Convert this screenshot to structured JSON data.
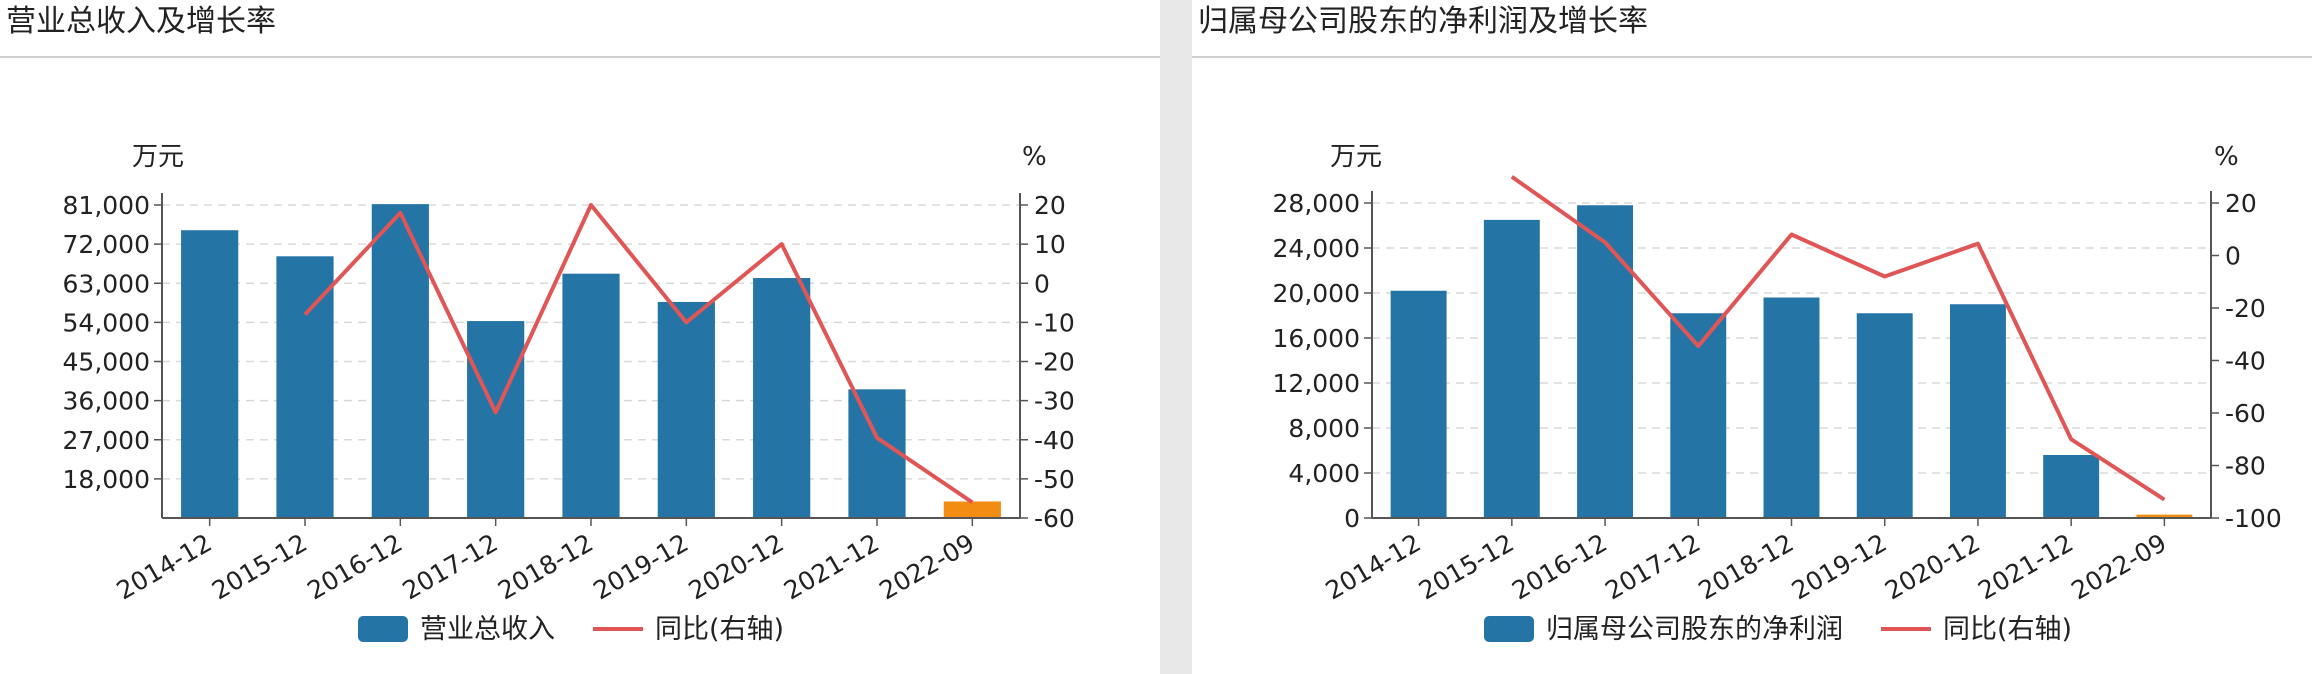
{
  "colors": {
    "bar": "#2574a6",
    "bar_highlight": "#f28c13",
    "line": "#e05656",
    "grid": "#d9d9d9",
    "axis": "#555555",
    "text": "#222222"
  },
  "charts": [
    {
      "title": "营业总收入及增长率",
      "left_unit": "万元",
      "right_unit": "%",
      "legend": [
        {
          "name": "营业总收入",
          "icon": "bar-swatch"
        },
        {
          "name": "同比(右轴)",
          "icon": "line-swatch"
        }
      ]
    },
    {
      "title": "归属母公司股东的净利润及增长率",
      "left_unit": "万元",
      "right_unit": "%",
      "legend": [
        {
          "name": "归属母公司股东的净利润",
          "icon": "bar-swatch"
        },
        {
          "name": "同比(右轴)",
          "icon": "line-swatch"
        }
      ]
    }
  ],
  "chart_data": [
    {
      "type": "bar",
      "title": "营业总收入及增长率",
      "categories": [
        "2014-12",
        "2015-12",
        "2016-12",
        "2017-12",
        "2018-12",
        "2019-12",
        "2020-12",
        "2021-12",
        "2022-09"
      ],
      "series": [
        {
          "name": "营业总收入",
          "type": "bar",
          "axis": "left",
          "values": [
            75200,
            69200,
            81200,
            54300,
            65200,
            58700,
            64200,
            38600,
            12800
          ],
          "highlight_last": true
        },
        {
          "name": "同比(右轴)",
          "type": "line",
          "axis": "right",
          "values": [
            null,
            -8,
            18,
            -33,
            20,
            -10,
            10,
            -39.5,
            -56
          ]
        }
      ],
      "left_axis": {
        "label": "万元",
        "ticks": [
          "18,000",
          "27,000",
          "36,000",
          "45,000",
          "54,000",
          "63,000",
          "72,000",
          "81,000"
        ],
        "tick_values": [
          18000,
          27000,
          36000,
          45000,
          54000,
          63000,
          72000,
          81000
        ],
        "range": [
          9000,
          81000
        ]
      },
      "right_axis": {
        "label": "%",
        "ticks": [
          "20",
          "10",
          "0",
          "-10",
          "-20",
          "-30",
          "-40",
          "-50",
          "-60"
        ],
        "tick_values": [
          20,
          10,
          0,
          -10,
          -20,
          -30,
          -40,
          -50,
          -60
        ],
        "range": [
          -60,
          20
        ]
      },
      "grid": true,
      "legend_position": "bottom"
    },
    {
      "type": "bar",
      "title": "归属母公司股东的净利润及增长率",
      "categories": [
        "2014-12",
        "2015-12",
        "2016-12",
        "2017-12",
        "2018-12",
        "2019-12",
        "2020-12",
        "2021-12",
        "2022-09"
      ],
      "series": [
        {
          "name": "归属母公司股东的净利润",
          "type": "bar",
          "axis": "left",
          "values": [
            20200,
            26500,
            27800,
            18200,
            19600,
            18200,
            19000,
            5600,
            300
          ],
          "highlight_last": true
        },
        {
          "name": "同比(右轴)",
          "type": "line",
          "axis": "right",
          "values": [
            null,
            30,
            5,
            -34.5,
            8,
            -8,
            4.5,
            -70,
            -93
          ]
        }
      ],
      "left_axis": {
        "label": "万元",
        "ticks": [
          "0",
          "4,000",
          "8,000",
          "12,000",
          "16,000",
          "20,000",
          "24,000",
          "28,000"
        ],
        "tick_values": [
          0,
          4000,
          8000,
          12000,
          16000,
          20000,
          24000,
          28000
        ],
        "range": [
          0,
          28000
        ]
      },
      "right_axis": {
        "label": "%",
        "ticks": [
          "20",
          "0",
          "-20",
          "-40",
          "-60",
          "-80",
          "-100"
        ],
        "tick_values": [
          20,
          0,
          -20,
          -40,
          -60,
          -80,
          -100
        ],
        "range": [
          -100,
          20
        ]
      },
      "grid": true,
      "legend_position": "bottom"
    }
  ]
}
